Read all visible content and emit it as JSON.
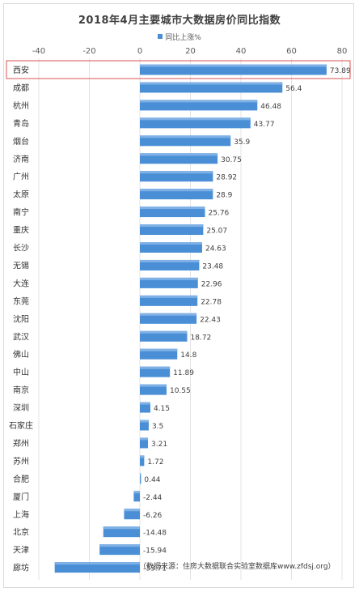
{
  "chart_data": {
    "type": "bar",
    "orientation": "horizontal",
    "title": "2018年4月主要城市大数据房价同比指数",
    "legend": "同比上涨%",
    "xlim": [
      -40,
      80
    ],
    "x_ticks": [
      "-40",
      "-20",
      "0",
      "20",
      "40",
      "60",
      "80"
    ],
    "x_tick_values": [
      -40,
      -20,
      0,
      20,
      40,
      60,
      80
    ],
    "grid": true,
    "bar_color": "#4a8fd6",
    "highlight_color": "#d9534f",
    "highlight_category": "西安",
    "categories": [
      "西安",
      "成都",
      "杭州",
      "青岛",
      "烟台",
      "济南",
      "广州",
      "太原",
      "南宁",
      "重庆",
      "长沙",
      "无锡",
      "大连",
      "东莞",
      "沈阳",
      "武汉",
      "佛山",
      "中山",
      "南京",
      "深圳",
      "石家庄",
      "郑州",
      "苏州",
      "合肥",
      "厦门",
      "上海",
      "北京",
      "天津",
      "廊坊"
    ],
    "values": [
      73.89,
      56.4,
      46.48,
      43.77,
      35.9,
      30.75,
      28.92,
      28.9,
      25.76,
      25.07,
      24.63,
      23.48,
      22.96,
      22.78,
      22.43,
      18.72,
      14.8,
      11.89,
      10.55,
      4.15,
      3.5,
      3.21,
      1.72,
      0.44,
      -2.44,
      -6.26,
      -14.48,
      -15.94,
      -33.71
    ],
    "value_labels": [
      "73.89",
      "56.4",
      "46.48",
      "43.77",
      "35.9",
      "30.75",
      "28.92",
      "28.9",
      "25.76",
      "25.07",
      "24.63",
      "23.48",
      "22.96",
      "22.78",
      "22.43",
      "18.72",
      "14.8",
      "11.89",
      "10.55",
      "4.15",
      "3.5",
      "3.21",
      "1.72",
      "0.44",
      "-2.44",
      "-6.26",
      "-14.48",
      "-15.94",
      "-33.71"
    ]
  },
  "source_note": "（数据来源：住房大数据联合实验室数据库www.zfdsj.org）"
}
